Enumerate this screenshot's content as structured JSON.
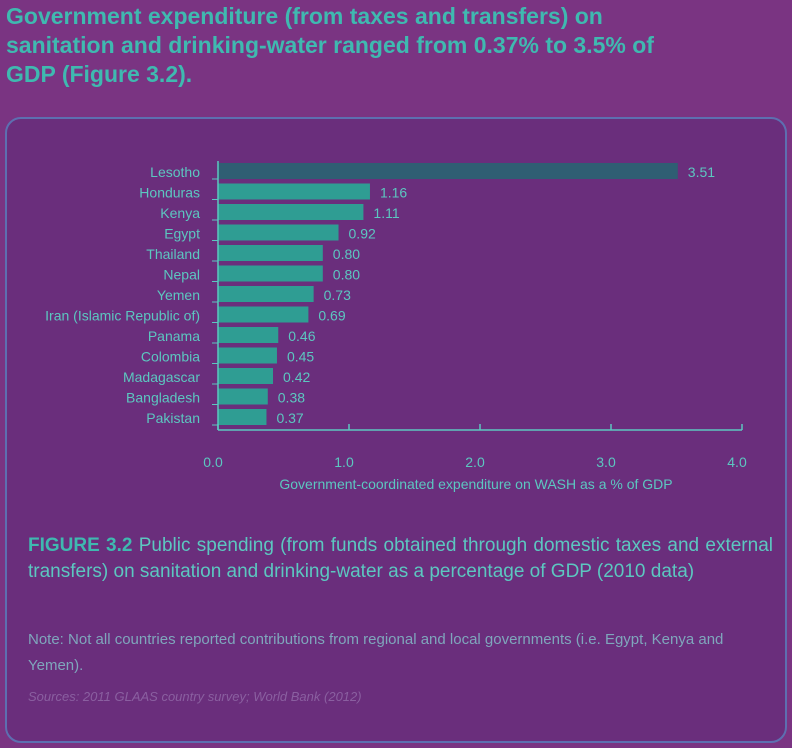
{
  "headline": "Government expenditure (from taxes and transfers) on sanitation and drinking-water ranged from 0.37% to 3.5% of GDP (Figure 3.2).",
  "caption": {
    "figure_label": "FIGURE 3.2",
    "text": " Public spending (from funds obtained through domestic taxes and external transfers) on sanitation and drinking-water as a percentage of GDP (2010 data)"
  },
  "note": "Note: Not all countries reported contributions from regional and local governments (i.e. Egypt, Kenya and Yemen).",
  "sources": "Sources: 2011 GLAAS country survey; World Bank (2012)",
  "colors": {
    "bar": "#2f9d93",
    "bar_highlight": "#2f5e73",
    "text": "#5cc7c0",
    "axis": "#5cc7c0"
  },
  "chart_data": {
    "type": "bar",
    "orientation": "horizontal",
    "categories": [
      "Lesotho",
      "Honduras",
      "Kenya",
      "Egypt",
      "Thailand",
      "Nepal",
      "Yemen",
      "Iran (Islamic Republic of)",
      "Panama",
      "Colombia",
      "Madagascar",
      "Bangladesh",
      "Pakistan"
    ],
    "values": [
      3.51,
      1.16,
      1.11,
      0.92,
      0.8,
      0.8,
      0.73,
      0.69,
      0.46,
      0.45,
      0.42,
      0.38,
      0.37
    ],
    "value_labels": [
      "3.51",
      "1.16",
      "1.11",
      "0.92",
      "0.80",
      "0.80",
      "0.73",
      "0.69",
      "0.46",
      "0.45",
      "0.42",
      "0.38",
      "0.37"
    ],
    "xlabel": "Government-coordinated expenditure on WASH as a % of GDP",
    "xlim": [
      0,
      4
    ],
    "xticks": [
      "0.0",
      "1.0",
      "2.0",
      "3.0",
      "4.0"
    ],
    "xtick_values": [
      0,
      1,
      2,
      3,
      4
    ],
    "grid": false
  }
}
